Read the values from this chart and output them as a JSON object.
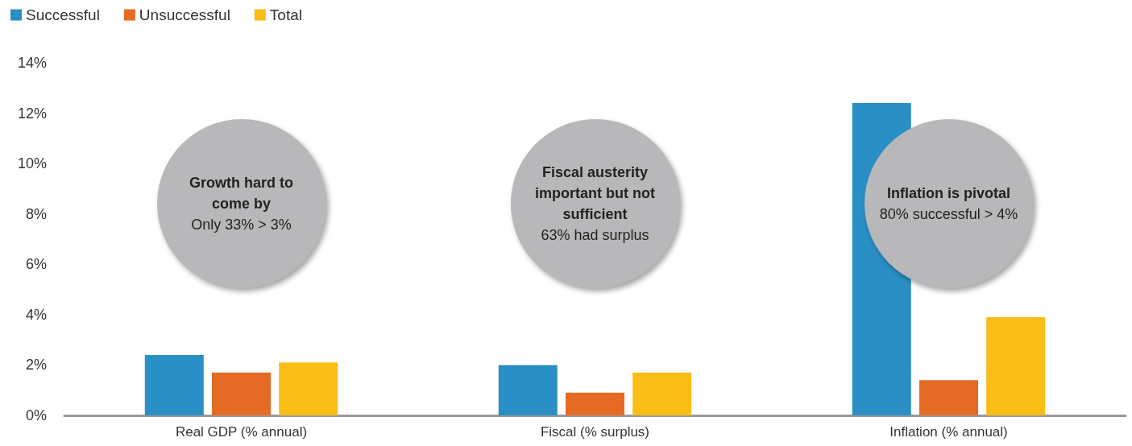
{
  "chart_data": {
    "type": "bar",
    "categories": [
      "Real GDP (% annual)",
      "Fiscal (% surplus)",
      "Inflation (% annual)"
    ],
    "series": [
      {
        "name": "Successful",
        "color": "#2a8fc4",
        "values": [
          2.4,
          2.0,
          12.4
        ]
      },
      {
        "name": "Unsuccessful",
        "color": "#e56b24",
        "values": [
          1.7,
          0.9,
          1.4
        ]
      },
      {
        "name": "Total",
        "color": "#f9bd16",
        "values": [
          2.1,
          1.7,
          3.9
        ]
      }
    ],
    "ylim": [
      0,
      14
    ],
    "yticks": [
      {
        "value": 0,
        "label": "0%"
      },
      {
        "value": 2,
        "label": "2%"
      },
      {
        "value": 4,
        "label": "4%"
      },
      {
        "value": 6,
        "label": "6%"
      },
      {
        "value": 8,
        "label": "8%"
      },
      {
        "value": 10,
        "label": "10%"
      },
      {
        "value": 12,
        "label": "12%"
      },
      {
        "value": 14,
        "label": "14%"
      }
    ],
    "grid": false,
    "legend": "top left",
    "annotations": [
      "Growth hard to come by",
      "Only 33% > 3%",
      "Fiscal austerity important but not sufficient",
      "63% had surplus",
      "Inflation is pivotal",
      "80% successful > 4%"
    ]
  }
}
